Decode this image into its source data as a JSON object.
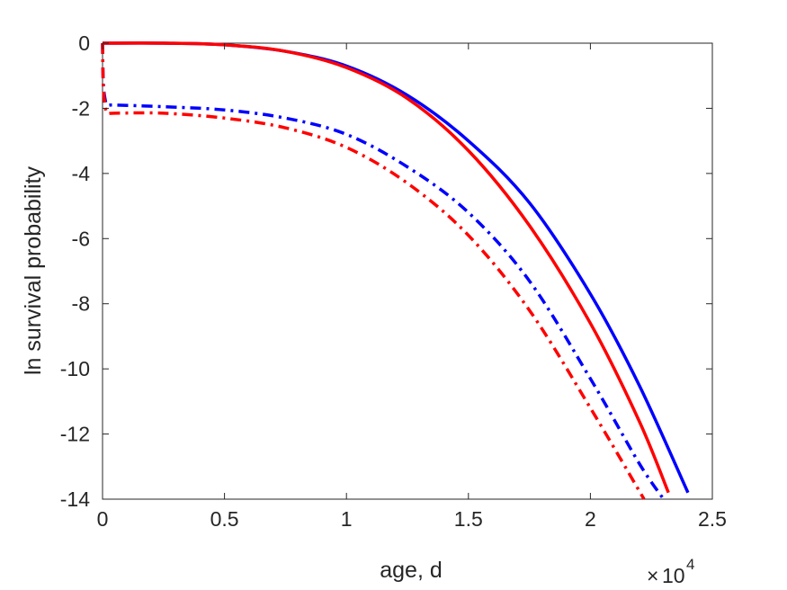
{
  "chart_data": {
    "type": "line",
    "title": "",
    "xlabel": "age, d",
    "ylabel": "ln survival probability",
    "x_exponent_label": "10",
    "x_exponent_power": "4",
    "x_exponent_prefix": "×",
    "xlim": [
      0,
      2.5
    ],
    "ylim": [
      -14,
      0
    ],
    "xticks": [
      0,
      0.5,
      1,
      1.5,
      2,
      2.5
    ],
    "xtick_labels": [
      "0",
      "0.5",
      "1",
      "1.5",
      "2",
      "2.5"
    ],
    "yticks": [
      0,
      -2,
      -4,
      -6,
      -8,
      -10,
      -12,
      -14
    ],
    "ytick_labels": [
      "0",
      "-2",
      "-4",
      "-6",
      "-8",
      "-10",
      "-12",
      "-14"
    ],
    "grid": false,
    "legend": "none",
    "series": [
      {
        "color": "#0000ff",
        "style": "solid",
        "x": [
          0,
          0.25,
          0.5,
          0.75,
          1.0,
          1.25,
          1.5,
          1.75,
          2.0,
          2.2,
          2.4
        ],
        "y": [
          0,
          0,
          -0.05,
          -0.25,
          -0.7,
          -1.6,
          -3.0,
          -4.9,
          -7.7,
          -10.5,
          -13.8
        ]
      },
      {
        "color": "#ff0000",
        "style": "solid",
        "x": [
          0,
          0.25,
          0.5,
          0.75,
          1.0,
          1.25,
          1.5,
          1.75,
          2.0,
          2.2,
          2.32
        ],
        "y": [
          0,
          0,
          -0.05,
          -0.25,
          -0.75,
          -1.7,
          -3.3,
          -5.6,
          -8.6,
          -11.6,
          -13.8
        ]
      },
      {
        "color": "#0000ff",
        "style": "dashdot",
        "x": [
          0,
          0.003,
          0.01,
          0.02,
          0.05,
          0.25,
          0.5,
          0.75,
          1.0,
          1.25,
          1.5,
          1.75,
          2.0,
          2.2,
          2.3
        ],
        "y": [
          0,
          -1.2,
          -1.7,
          -1.9,
          -1.9,
          -1.95,
          -2.05,
          -2.3,
          -2.8,
          -3.8,
          -5.2,
          -7.3,
          -10.3,
          -12.9,
          -14.0
        ]
      },
      {
        "color": "#ff0000",
        "style": "dashdot",
        "x": [
          0,
          0.003,
          0.01,
          0.02,
          0.05,
          0.25,
          0.5,
          0.75,
          1.0,
          1.25,
          1.5,
          1.75,
          2.0,
          2.22
        ],
        "y": [
          0,
          -1.3,
          -1.9,
          -2.15,
          -2.15,
          -2.15,
          -2.3,
          -2.6,
          -3.2,
          -4.3,
          -5.9,
          -8.2,
          -11.2,
          -14.0
        ]
      }
    ]
  }
}
